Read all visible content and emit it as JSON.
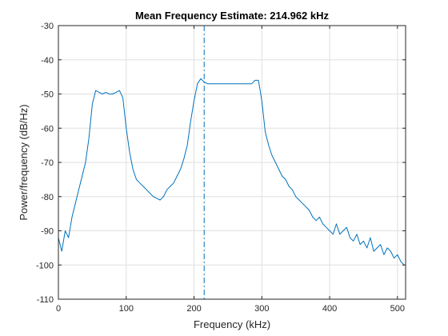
{
  "chart_data": {
    "type": "line",
    "title": "Mean Frequency Estimate: 214.962 kHz",
    "xlabel": "Frequency (kHz)",
    "ylabel": "Power/frequency (dB/Hz)",
    "xlim": [
      0,
      512
    ],
    "ylim": [
      -110,
      -30
    ],
    "xticks": [
      0,
      100,
      200,
      300,
      400,
      500
    ],
    "xtick_labels": [
      "0",
      "100",
      "200",
      "300",
      "400",
      "500"
    ],
    "yticks": [
      -110,
      -100,
      -90,
      -80,
      -70,
      -60,
      -50,
      -40,
      -30
    ],
    "ytick_labels": [
      "-110",
      "-100",
      "-90",
      "-80",
      "-70",
      "-60",
      "-50",
      "-40",
      "-30"
    ],
    "grid": true,
    "mean_frequency_line": {
      "x": 214.962,
      "style": "dash-dot"
    },
    "series": [
      {
        "color": "#0072BD",
        "x": [
          0,
          5,
          10,
          15,
          20,
          25,
          30,
          35,
          40,
          45,
          50,
          55,
          60,
          65,
          70,
          75,
          80,
          85,
          90,
          95,
          100,
          105,
          110,
          115,
          120,
          125,
          130,
          135,
          140,
          145,
          150,
          155,
          160,
          165,
          170,
          175,
          180,
          185,
          190,
          195,
          200,
          205,
          210,
          215,
          220,
          225,
          230,
          235,
          240,
          245,
          250,
          255,
          260,
          265,
          270,
          275,
          280,
          285,
          290,
          295,
          300,
          305,
          310,
          315,
          320,
          325,
          330,
          335,
          340,
          345,
          350,
          355,
          360,
          365,
          370,
          375,
          380,
          385,
          390,
          395,
          400,
          405,
          410,
          415,
          420,
          425,
          430,
          435,
          440,
          445,
          450,
          455,
          460,
          465,
          470,
          475,
          480,
          485,
          490,
          495,
          500,
          505,
          510
        ],
        "y": [
          -92,
          -96,
          -90,
          -92,
          -86,
          -82,
          -78,
          -74,
          -70,
          -63,
          -53,
          -49,
          -49.5,
          -50,
          -49.5,
          -50,
          -50,
          -49.5,
          -49,
          -51,
          -60,
          -67,
          -72,
          -75,
          -76,
          -77,
          -78,
          -79,
          -80,
          -80.5,
          -81,
          -80,
          -78,
          -77,
          -76,
          -74,
          -72,
          -69,
          -65,
          -58,
          -52,
          -47,
          -45.5,
          -46.5,
          -47,
          -47,
          -47,
          -47,
          -47,
          -47,
          -47,
          -47,
          -47,
          -47,
          -47,
          -47,
          -47,
          -47,
          -46,
          -46,
          -52,
          -61,
          -65,
          -68,
          -70,
          -72,
          -74,
          -75,
          -77,
          -78,
          -80,
          -81,
          -82,
          -83,
          -84,
          -86,
          -87,
          -86,
          -88,
          -89,
          -90,
          -91,
          -88,
          -91,
          -90,
          -89,
          -92,
          -93,
          -91,
          -94,
          -93,
          -95,
          -92,
          -96,
          -95,
          -94,
          -97,
          -95,
          -96,
          -98,
          -97,
          -99,
          -100
        ]
      }
    ]
  }
}
